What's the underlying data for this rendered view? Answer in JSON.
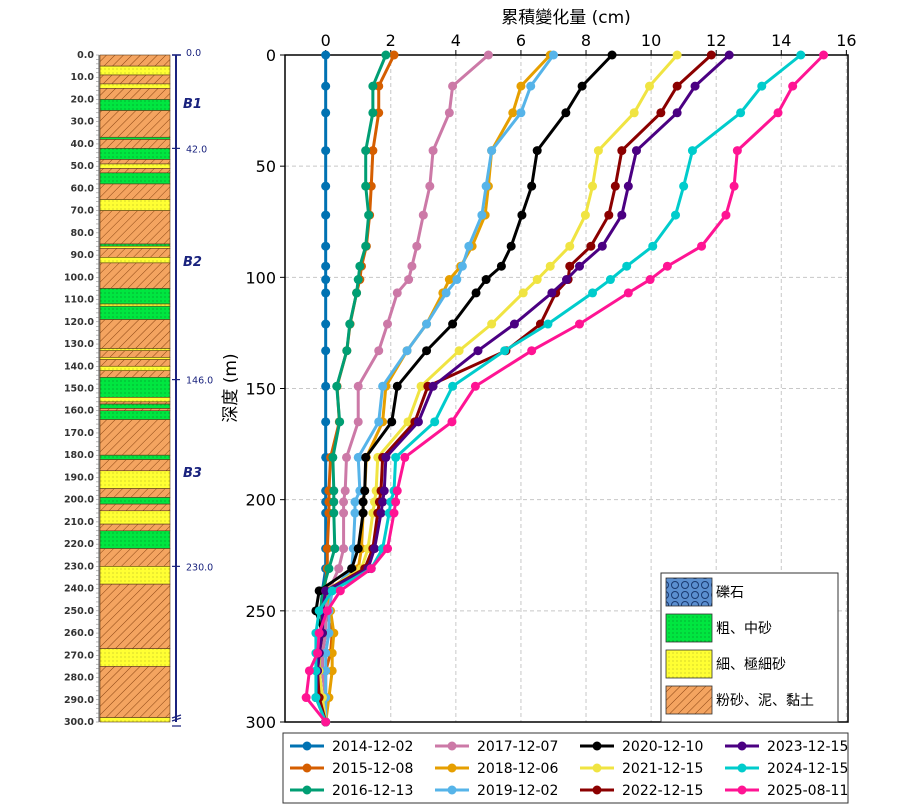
{
  "strata_column": {
    "depth_ticks": [
      "0.0",
      "10.0",
      "20.0",
      "30.0",
      "40.0",
      "50.0",
      "60.0",
      "70.0",
      "80.0",
      "90.0",
      "100.0",
      "110.0",
      "120.0",
      "130.0",
      "140.0",
      "150.0",
      "160.0",
      "170.0",
      "180.0",
      "190.0",
      "200.0",
      "210.0",
      "220.0",
      "230.0",
      "240.0",
      "250.0",
      "260.0",
      "270.0",
      "280.0",
      "290.0",
      "300.0"
    ],
    "layers": [
      {
        "top": 0,
        "bottom": 5,
        "type": "silt"
      },
      {
        "top": 5,
        "bottom": 9,
        "type": "fine"
      },
      {
        "top": 9,
        "bottom": 13,
        "type": "silt"
      },
      {
        "top": 13,
        "bottom": 15,
        "type": "fine"
      },
      {
        "top": 15,
        "bottom": 20,
        "type": "silt"
      },
      {
        "top": 20,
        "bottom": 25,
        "type": "coarse"
      },
      {
        "top": 25,
        "bottom": 37,
        "type": "silt"
      },
      {
        "top": 37,
        "bottom": 38,
        "type": "coarse"
      },
      {
        "top": 38,
        "bottom": 42,
        "type": "silt"
      },
      {
        "top": 42,
        "bottom": 47,
        "type": "coarse"
      },
      {
        "top": 47,
        "bottom": 49,
        "type": "silt"
      },
      {
        "top": 49,
        "bottom": 51,
        "type": "fine"
      },
      {
        "top": 51,
        "bottom": 53,
        "type": "silt"
      },
      {
        "top": 53,
        "bottom": 58,
        "type": "coarse"
      },
      {
        "top": 58,
        "bottom": 65,
        "type": "silt"
      },
      {
        "top": 65,
        "bottom": 70,
        "type": "fine"
      },
      {
        "top": 70,
        "bottom": 85,
        "type": "silt"
      },
      {
        "top": 85,
        "bottom": 86,
        "type": "coarse"
      },
      {
        "top": 86,
        "bottom": 87,
        "type": "fine"
      },
      {
        "top": 87,
        "bottom": 91,
        "type": "silt"
      },
      {
        "top": 91,
        "bottom": 93.5,
        "type": "fine"
      },
      {
        "top": 93.5,
        "bottom": 105,
        "type": "silt"
      },
      {
        "top": 105,
        "bottom": 112,
        "type": "coarse"
      },
      {
        "top": 112,
        "bottom": 113,
        "type": "fine"
      },
      {
        "top": 113,
        "bottom": 119,
        "type": "coarse"
      },
      {
        "top": 119,
        "bottom": 132,
        "type": "silt"
      },
      {
        "top": 132,
        "bottom": 133,
        "type": "fine"
      },
      {
        "top": 133,
        "bottom": 136,
        "type": "silt"
      },
      {
        "top": 136,
        "bottom": 137,
        "type": "fine"
      },
      {
        "top": 137,
        "bottom": 140,
        "type": "silt"
      },
      {
        "top": 140,
        "bottom": 142,
        "type": "fine"
      },
      {
        "top": 142,
        "bottom": 145,
        "type": "silt"
      },
      {
        "top": 145,
        "bottom": 154,
        "type": "coarse"
      },
      {
        "top": 154,
        "bottom": 156,
        "type": "fine"
      },
      {
        "top": 156,
        "bottom": 157,
        "type": "silt"
      },
      {
        "top": 157,
        "bottom": 159,
        "type": "coarse"
      },
      {
        "top": 159,
        "bottom": 160,
        "type": "silt"
      },
      {
        "top": 160,
        "bottom": 164,
        "type": "coarse"
      },
      {
        "top": 164,
        "bottom": 180,
        "type": "silt"
      },
      {
        "top": 180,
        "bottom": 182,
        "type": "coarse"
      },
      {
        "top": 182,
        "bottom": 187,
        "type": "silt"
      },
      {
        "top": 187,
        "bottom": 195,
        "type": "fine"
      },
      {
        "top": 195,
        "bottom": 199,
        "type": "silt"
      },
      {
        "top": 199,
        "bottom": 202,
        "type": "coarse"
      },
      {
        "top": 202,
        "bottom": 205,
        "type": "silt"
      },
      {
        "top": 205,
        "bottom": 211,
        "type": "fine"
      },
      {
        "top": 211,
        "bottom": 214,
        "type": "silt"
      },
      {
        "top": 214,
        "bottom": 222,
        "type": "coarse"
      },
      {
        "top": 222,
        "bottom": 230,
        "type": "silt"
      },
      {
        "top": 230,
        "bottom": 238,
        "type": "fine"
      },
      {
        "top": 238,
        "bottom": 267,
        "type": "silt"
      },
      {
        "top": 267,
        "bottom": 275,
        "type": "fine"
      },
      {
        "top": 275,
        "bottom": 298,
        "type": "silt"
      },
      {
        "top": 298,
        "bottom": 300,
        "type": "fine"
      }
    ],
    "boundaries": [
      {
        "depth": 0,
        "label": "0.0"
      },
      {
        "depth": 42,
        "label": "42.0"
      },
      {
        "depth": 146,
        "label": "146.0"
      },
      {
        "depth": 230,
        "label": "230.0"
      }
    ],
    "units": [
      {
        "label": "B1",
        "depth": 22
      },
      {
        "label": "B2",
        "depth": 93
      },
      {
        "label": "B3",
        "depth": 188
      }
    ]
  },
  "lithology_legend": [
    {
      "type": "gravel",
      "label": "礫石"
    },
    {
      "type": "coarse",
      "label": "粗、中砂"
    },
    {
      "type": "fine",
      "label": "細、極細砂"
    },
    {
      "type": "silt",
      "label": "粉砂、泥、黏土"
    }
  ],
  "chart_data": {
    "type": "line",
    "title": "",
    "xlabel": "累積變化量 (cm)",
    "ylabel": "深度 (m)",
    "xlim": [
      -1.25,
      16.05
    ],
    "ylim": [
      300,
      0
    ],
    "y_inverted": true,
    "x_axis_position": "top",
    "xticks": [
      0,
      2,
      4,
      6,
      8,
      10,
      12,
      14,
      16
    ],
    "yticks": [
      0,
      50,
      100,
      150,
      200,
      250,
      300
    ],
    "grid": true,
    "legend_placement": "bottom-outside",
    "depths": [
      0,
      14,
      26,
      43,
      59,
      72,
      86,
      95,
      101,
      107,
      121,
      133,
      149,
      165,
      181,
      196,
      201,
      206,
      222,
      231,
      241,
      250,
      260,
      269,
      277,
      289,
      300
    ],
    "series": [
      {
        "name": "2014-12-02",
        "color": "#0072b2",
        "values": [
          0,
          0,
          0,
          0,
          0,
          0,
          0,
          0,
          0,
          0,
          0,
          0,
          0,
          0,
          0,
          0,
          0,
          0,
          0,
          0,
          -0.1,
          -0.15,
          0,
          -0.1,
          -0.1,
          0,
          0
        ]
      },
      {
        "name": "2015-12-08",
        "color": "#d55e00",
        "values": [
          2.1,
          1.63,
          1.63,
          1.45,
          1.4,
          1.35,
          1.25,
          1.1,
          1.05,
          0.95,
          0.75,
          0.65,
          0.35,
          0.42,
          0.15,
          0.1,
          0.1,
          0.1,
          0.05,
          0.05,
          -0.05,
          0,
          0.2,
          0.15,
          0,
          0,
          0
        ]
      },
      {
        "name": "2016-12-13",
        "color": "#009e73",
        "values": [
          1.85,
          1.45,
          1.45,
          1.23,
          1.23,
          1.32,
          1.23,
          1.05,
          1.0,
          0.95,
          0.74,
          0.65,
          0.34,
          0.43,
          0.22,
          0.25,
          0.25,
          0.25,
          0.28,
          0.1,
          -0.1,
          -0.15,
          -0.1,
          -0.2,
          -0.2,
          -0.2,
          0
        ]
      },
      {
        "name": "2017-12-07",
        "color": "#cc79a7",
        "values": [
          5.0,
          3.9,
          3.8,
          3.3,
          3.2,
          3.0,
          2.8,
          2.65,
          2.55,
          2.2,
          1.9,
          1.63,
          1.0,
          1.0,
          0.64,
          0.6,
          0.55,
          0.55,
          0.55,
          0.4,
          0.1,
          0,
          0,
          -0.1,
          -0.1,
          0,
          0
        ]
      },
      {
        "name": "2018-12-06",
        "color": "#e69f00",
        "values": [
          6.9,
          6.0,
          5.75,
          5.1,
          5.0,
          4.9,
          4.5,
          4.15,
          3.8,
          3.6,
          3.1,
          2.5,
          1.85,
          1.75,
          1.25,
          1.2,
          1.15,
          1.15,
          1.1,
          1.0,
          0.05,
          0.15,
          0.25,
          0.2,
          0.2,
          0.1,
          0
        ]
      },
      {
        "name": "2019-12-02",
        "color": "#56b4e9",
        "values": [
          7.0,
          6.3,
          6.0,
          5.1,
          4.93,
          4.8,
          4.4,
          4.2,
          4.03,
          3.7,
          3.1,
          2.5,
          1.75,
          1.63,
          1.0,
          1.05,
          0.9,
          0.9,
          0.85,
          0.8,
          0.2,
          0.1,
          0.1,
          0,
          0,
          0,
          0
        ]
      },
      {
        "name": "2020-12-10",
        "color": "#000000",
        "values": [
          8.8,
          7.88,
          7.38,
          6.5,
          6.33,
          6.03,
          5.7,
          5.4,
          4.93,
          4.62,
          3.9,
          3.1,
          2.2,
          2.03,
          1.23,
          1.2,
          1.15,
          1.15,
          1.0,
          0.8,
          -0.2,
          -0.3,
          -0.1,
          -0.2,
          -0.2,
          -0.2,
          0
        ]
      },
      {
        "name": "2021-12-15",
        "color": "#f0e442",
        "values": [
          10.8,
          9.95,
          9.48,
          8.38,
          8.2,
          7.98,
          7.5,
          6.9,
          6.5,
          6.07,
          5.1,
          4.1,
          2.93,
          2.53,
          1.6,
          1.55,
          1.5,
          1.45,
          1.3,
          1.1,
          0,
          -0.1,
          -0.1,
          -0.2,
          -0.2,
          -0.1,
          0
        ]
      },
      {
        "name": "2022-12-15",
        "color": "#8b0000",
        "values": [
          11.85,
          10.8,
          10.3,
          9.1,
          8.9,
          8.7,
          8.15,
          7.5,
          7.45,
          7.07,
          6.6,
          5.54,
          3.14,
          2.74,
          1.75,
          1.7,
          1.65,
          1.6,
          1.45,
          1.2,
          0,
          -0.1,
          -0.1,
          -0.2,
          -0.25,
          -0.2,
          0
        ]
      },
      {
        "name": "2023-12-15",
        "color": "#4b0082",
        "values": [
          12.4,
          11.35,
          10.8,
          9.55,
          9.3,
          9.1,
          8.5,
          7.8,
          7.4,
          6.95,
          5.8,
          4.68,
          3.3,
          2.85,
          1.85,
          1.8,
          1.75,
          1.7,
          1.5,
          1.3,
          0,
          -0.1,
          -0.1,
          -0.2,
          -0.25,
          -0.3,
          0
        ]
      },
      {
        "name": "2024-12-15",
        "color": "#00cccc",
        "values": [
          14.6,
          13.4,
          12.75,
          11.27,
          11.0,
          10.75,
          10.05,
          9.25,
          8.75,
          8.2,
          6.83,
          5.5,
          3.9,
          3.35,
          2.15,
          2.1,
          2.0,
          1.95,
          1.75,
          1.4,
          0.2,
          -0.2,
          -0.3,
          -0.3,
          -0.3,
          -0.3,
          0
        ]
      },
      {
        "name": "2025-08-11",
        "color": "#ff1493",
        "values": [
          15.3,
          14.35,
          13.9,
          12.65,
          12.55,
          12.3,
          11.55,
          10.5,
          9.97,
          9.3,
          7.8,
          6.33,
          4.6,
          3.88,
          2.43,
          2.2,
          2.15,
          2.1,
          1.9,
          1.4,
          0.45,
          0.05,
          -0.2,
          -0.25,
          -0.5,
          -0.6,
          0
        ]
      }
    ]
  },
  "colors": {
    "silt": "#f4a460",
    "coarse": "#00e640",
    "fine": "#ffff33",
    "gravel": "#5b8fd0",
    "strata_axis": "#1a237e"
  }
}
